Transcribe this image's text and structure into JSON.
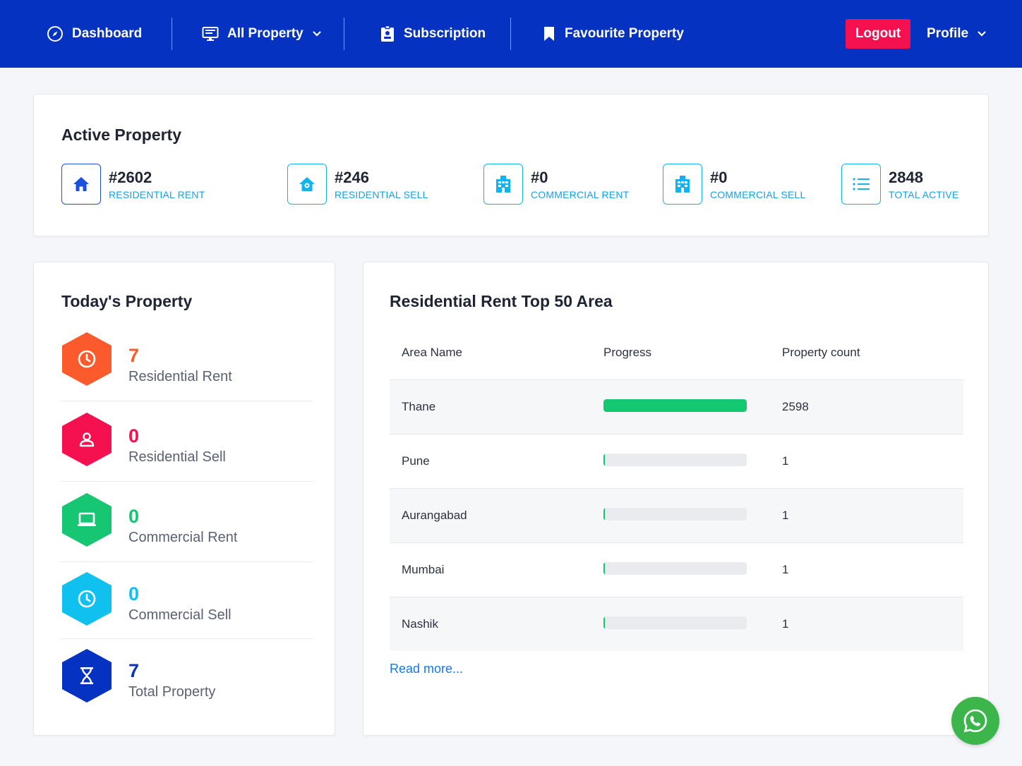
{
  "nav": {
    "dashboard": "Dashboard",
    "all_property": "All Property",
    "subscription": "Subscription",
    "favourite": "Favourite Property",
    "logout": "Logout",
    "profile": "Profile"
  },
  "active": {
    "title": "Active Property",
    "stats": [
      {
        "num": "#2602",
        "label": "RESIDENTIAL RENT",
        "icon": "home-icon"
      },
      {
        "num": "#246",
        "label": "RESIDENTIAL SELL",
        "icon": "house-sell-icon"
      },
      {
        "num": "#0",
        "label": "COMMERCIAL RENT",
        "icon": "building-icon"
      },
      {
        "num": "#0",
        "label": "COMMERCIAL SELL",
        "icon": "building-icon"
      },
      {
        "num": "2848",
        "label": "TOTAL ACTIVE",
        "icon": "list-icon"
      }
    ]
  },
  "today": {
    "title": "Today's Property",
    "items": [
      {
        "num": "7",
        "label": "Residential Rent",
        "color": "#fb5b2c",
        "icon": "clock-icon"
      },
      {
        "num": "0",
        "label": "Residential Sell",
        "color": "#f5114f",
        "icon": "user-icon"
      },
      {
        "num": "0",
        "label": "Commercial Rent",
        "color": "#17c672",
        "icon": "laptop-icon"
      },
      {
        "num": "0",
        "label": "Commercial Sell",
        "color": "#10c1ef",
        "icon": "clock-icon"
      },
      {
        "num": "7",
        "label": "Total Property",
        "color": "#0632c2",
        "icon": "hourglass-icon"
      }
    ]
  },
  "top_areas": {
    "title": "Residential Rent Top 50 Area",
    "columns": [
      "Area Name",
      "Progress",
      "Property count"
    ],
    "rows": [
      {
        "area": "Thane",
        "count": "2598",
        "progress": 0.9985
      },
      {
        "area": "Pune",
        "count": "1",
        "progress": 0.0004
      },
      {
        "area": "Aurangabad",
        "count": "1",
        "progress": 0.0004
      },
      {
        "area": "Mumbai",
        "count": "1",
        "progress": 0.0004
      },
      {
        "area": "Nashik",
        "count": "1",
        "progress": 0.0004
      }
    ],
    "read_more": "Read more..."
  },
  "colors": {
    "navbar": "#0632c2",
    "logout": "#f5114f",
    "progress": "#14c871",
    "whatsapp": "#3cb54a"
  }
}
